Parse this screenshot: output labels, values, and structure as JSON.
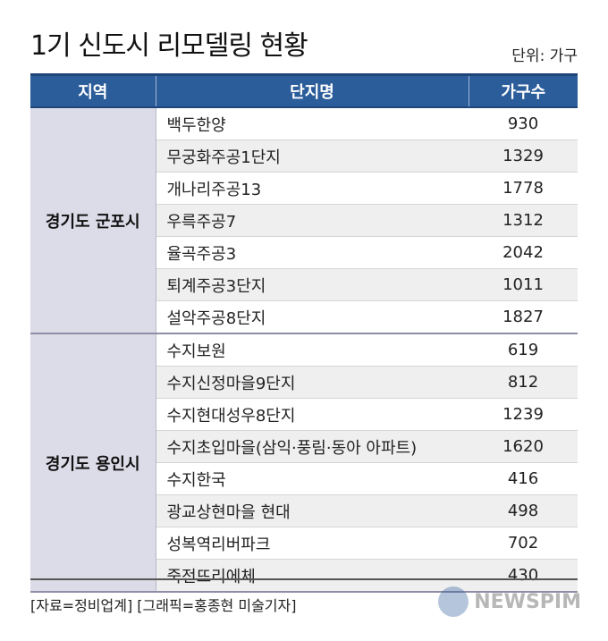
{
  "title": "1기 신도시 리모델링 현황",
  "unit": "단위: 가구",
  "columns": {
    "region": "지역",
    "name": "단지명",
    "count": "가구수"
  },
  "groups": [
    {
      "region": "경기도 군포시",
      "rows": [
        {
          "name": "백두한양",
          "count": "930"
        },
        {
          "name": "무궁화주공1단지",
          "count": "1329"
        },
        {
          "name": "개나리주공13",
          "count": "1778"
        },
        {
          "name": "우륵주공7",
          "count": "1312"
        },
        {
          "name": "율곡주공3",
          "count": "2042"
        },
        {
          "name": "퇴계주공3단지",
          "count": "1011"
        },
        {
          "name": "설악주공8단지",
          "count": "1827"
        }
      ]
    },
    {
      "region": "경기도 용인시",
      "rows": [
        {
          "name": "수지보원",
          "count": "619"
        },
        {
          "name": "수지신정마을9단지",
          "count": "812"
        },
        {
          "name": "수지현대성우8단지",
          "count": "1239"
        },
        {
          "name": "수지초입마을(삼익·풍림·동아 아파트)",
          "count": "1620"
        },
        {
          "name": "수지한국",
          "count": "416"
        },
        {
          "name": "광교상현마을 현대",
          "count": "498"
        },
        {
          "name": "성복역리버파크",
          "count": "702"
        },
        {
          "name": "죽전뜨리에체",
          "count": "430"
        }
      ]
    }
  ],
  "source": "[자료=정비업계] [그래픽=홍종현 미술기자]",
  "logo": {
    "text": "NEWSPIM",
    "icon": "newspim-logo-icon",
    "brand_color": "#2c5d9b"
  },
  "colors": {
    "header_bg": "#2c5d9b",
    "region_bg": "#dcdbe8",
    "shade_row": "#efefef"
  }
}
